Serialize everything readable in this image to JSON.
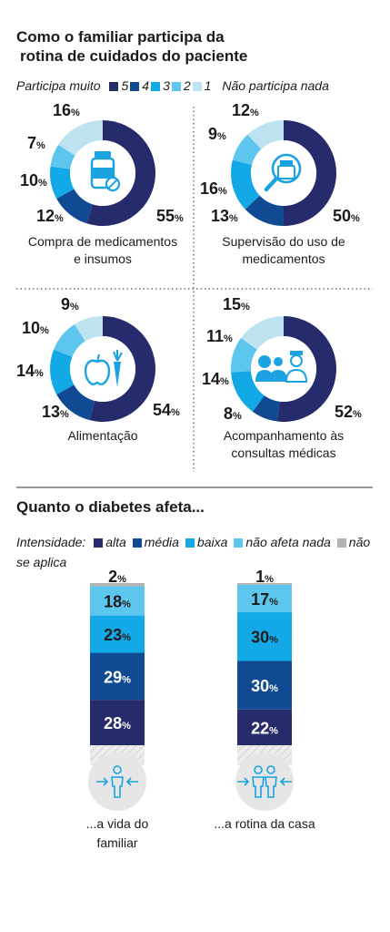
{
  "section1": {
    "title_line1": "Como o familiar participa da",
    "title_line2": "rotina de cuidados do paciente",
    "legend": {
      "left": "Participa muito",
      "right": "Não participa nada",
      "keys": [
        "5",
        "4",
        "3",
        "2",
        "1"
      ]
    }
  },
  "section2": {
    "title": "Quanto o diabetes afeta...",
    "legend_prefix": "Intensidade:",
    "legend_items": [
      "alta",
      "média",
      "baixa",
      "não afeta nada",
      "não se aplica"
    ]
  },
  "colors": {
    "c5": "#262c6b",
    "c4": "#0f4a93",
    "c3": "#12a9e6",
    "c2": "#5cc6ee",
    "c1": "#bde3f1",
    "na": "#b3b3b3",
    "text": "#1b1b1b",
    "icon": "#1aa3e0"
  },
  "chart_data": [
    {
      "type": "pie",
      "label_line1": "Compra de medicamentos",
      "label_line2": "e insumos",
      "icon": "medicine-bottle-icon",
      "categories": [
        "5",
        "4",
        "3",
        "2",
        "1"
      ],
      "values": [
        55,
        12,
        10,
        7,
        16
      ]
    },
    {
      "type": "pie",
      "label_line1": "Supervisão do uso de",
      "label_line2": "medicamentos",
      "icon": "magnifier-bottle-icon",
      "categories": [
        "5",
        "4",
        "3",
        "2",
        "1"
      ],
      "values": [
        50,
        13,
        16,
        9,
        12
      ]
    },
    {
      "type": "pie",
      "label_line1": "Alimentação",
      "label_line2": "",
      "icon": "apple-carrot-icon",
      "categories": [
        "5",
        "4",
        "3",
        "2",
        "1"
      ],
      "values": [
        54,
        13,
        14,
        10,
        9
      ]
    },
    {
      "type": "pie",
      "label_line1": "Acompanhamento às",
      "label_line2": "consultas médicas",
      "icon": "doctor-patients-icon",
      "categories": [
        "5",
        "4",
        "3",
        "2",
        "1"
      ],
      "values": [
        52,
        8,
        14,
        11,
        15
      ]
    },
    {
      "type": "bar",
      "stacked": true,
      "label_line1": "...a vida do",
      "label_line2": "familiar",
      "icon": "person-arrows-icon",
      "categories": [
        "alta",
        "média",
        "baixa",
        "não afeta nada",
        "não se aplica"
      ],
      "values": [
        28,
        29,
        23,
        18,
        2
      ]
    },
    {
      "type": "bar",
      "stacked": true,
      "label_line1": "...a rotina da casa",
      "label_line2": "",
      "icon": "family-arrows-icon",
      "categories": [
        "alta",
        "média",
        "baixa",
        "não afeta nada",
        "não se aplica"
      ],
      "values": [
        22,
        30,
        30,
        17,
        1
      ]
    }
  ]
}
